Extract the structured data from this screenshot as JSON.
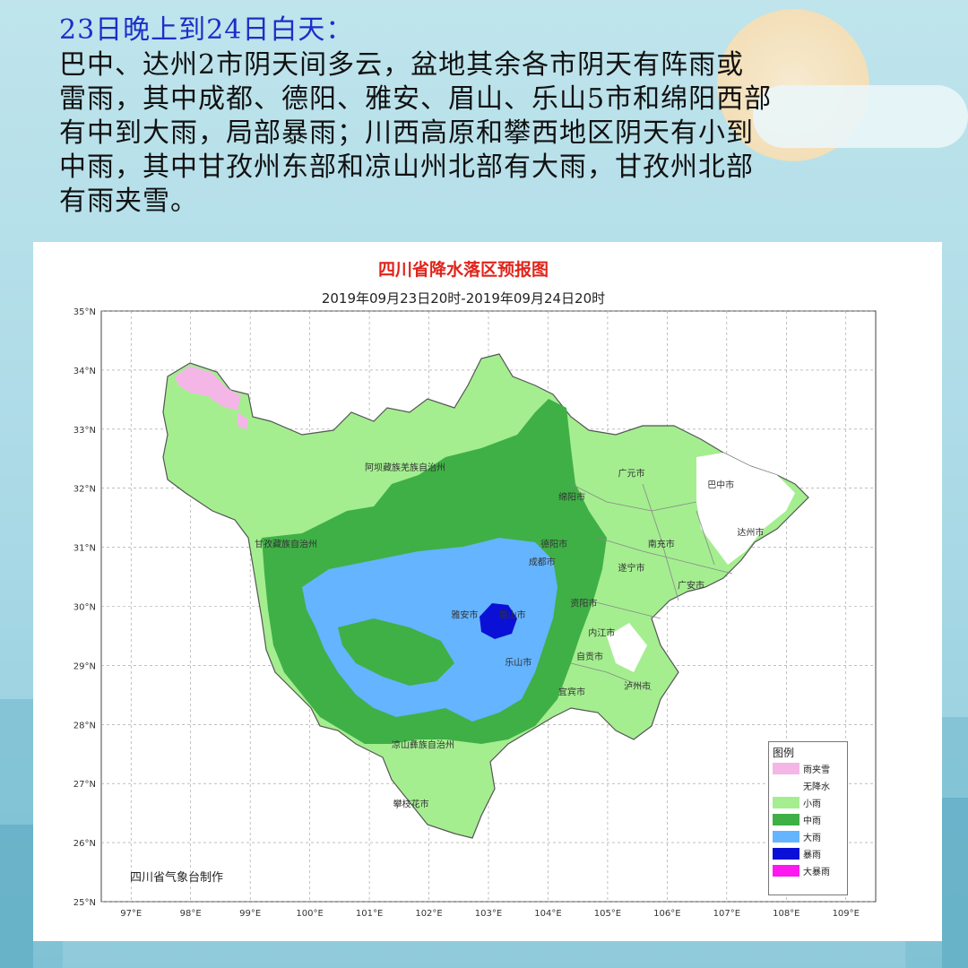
{
  "header": {
    "subtitle": "23日晚上到24日白天：",
    "lines": [
      "巴中、达州2市阴天间多云，盆地其余各市阴天有阵雨或",
      "雷雨，其中成都、德阳、雅安、眉山、乐山5市和绵阳西部",
      "有中到大雨，局部暴雨；川西高原和攀西地区阴天有小到",
      "中雨，其中甘孜州东部和凉山州北部有大雨，甘孜州北部",
      "有雨夹雪。"
    ]
  },
  "map": {
    "title": "四川省降水落区预报图",
    "date_range": "2019年09月23日20时-2019年09月24日20时",
    "credit": "四川省气象台制作",
    "lat_labels": [
      "35°N",
      "34°N",
      "33°N",
      "32°N",
      "31°N",
      "30°N",
      "29°N",
      "28°N",
      "27°N",
      "26°N",
      "25°N"
    ],
    "lon_labels": [
      "97°E",
      "98°E",
      "99°E",
      "100°E",
      "101°E",
      "102°E",
      "103°E",
      "104°E",
      "105°E",
      "106°E",
      "107°E",
      "108°E",
      "109°E"
    ],
    "places": [
      {
        "name": "阿坝藏族羌族自治州",
        "lon": 101.6,
        "lat": 32.3
      },
      {
        "name": "甘孜藏族自治州",
        "lon": 99.6,
        "lat": 31.0
      },
      {
        "name": "凉山彝族自治州",
        "lon": 101.9,
        "lat": 27.6
      },
      {
        "name": "攀枝花市",
        "lon": 101.7,
        "lat": 26.6
      },
      {
        "name": "雅安市",
        "lon": 102.6,
        "lat": 29.8
      },
      {
        "name": "眉山市",
        "lon": 103.4,
        "lat": 29.8
      },
      {
        "name": "乐山市",
        "lon": 103.5,
        "lat": 29.0
      },
      {
        "name": "成都市",
        "lon": 103.9,
        "lat": 30.7
      },
      {
        "name": "德阳市",
        "lon": 104.1,
        "lat": 31.0
      },
      {
        "name": "绵阳市",
        "lon": 104.4,
        "lat": 31.8
      },
      {
        "name": "广元市",
        "lon": 105.4,
        "lat": 32.2
      },
      {
        "name": "巴中市",
        "lon": 106.9,
        "lat": 32.0
      },
      {
        "name": "达州市",
        "lon": 107.4,
        "lat": 31.2
      },
      {
        "name": "南充市",
        "lon": 105.9,
        "lat": 31.0
      },
      {
        "name": "遂宁市",
        "lon": 105.4,
        "lat": 30.6
      },
      {
        "name": "广安市",
        "lon": 106.4,
        "lat": 30.3
      },
      {
        "name": "资阳市",
        "lon": 104.6,
        "lat": 30.0
      },
      {
        "name": "内江市",
        "lon": 104.9,
        "lat": 29.5
      },
      {
        "name": "自贡市",
        "lon": 104.7,
        "lat": 29.1
      },
      {
        "name": "宜宾市",
        "lon": 104.4,
        "lat": 28.5
      },
      {
        "name": "泸州市",
        "lon": 105.5,
        "lat": 28.6
      }
    ],
    "legend": {
      "title": "图例",
      "items": [
        {
          "label": "雨夹雪",
          "color": "#f4b6e6"
        },
        {
          "label": "无降水",
          "color": "#ffffff"
        },
        {
          "label": "小雨",
          "color": "#a4ee90"
        },
        {
          "label": "中雨",
          "color": "#3fb046"
        },
        {
          "label": "大雨",
          "color": "#64b4ff"
        },
        {
          "label": "暴雨",
          "color": "#0a10d6"
        },
        {
          "label": "大暴雨",
          "color": "#ff17ef"
        }
      ]
    }
  }
}
